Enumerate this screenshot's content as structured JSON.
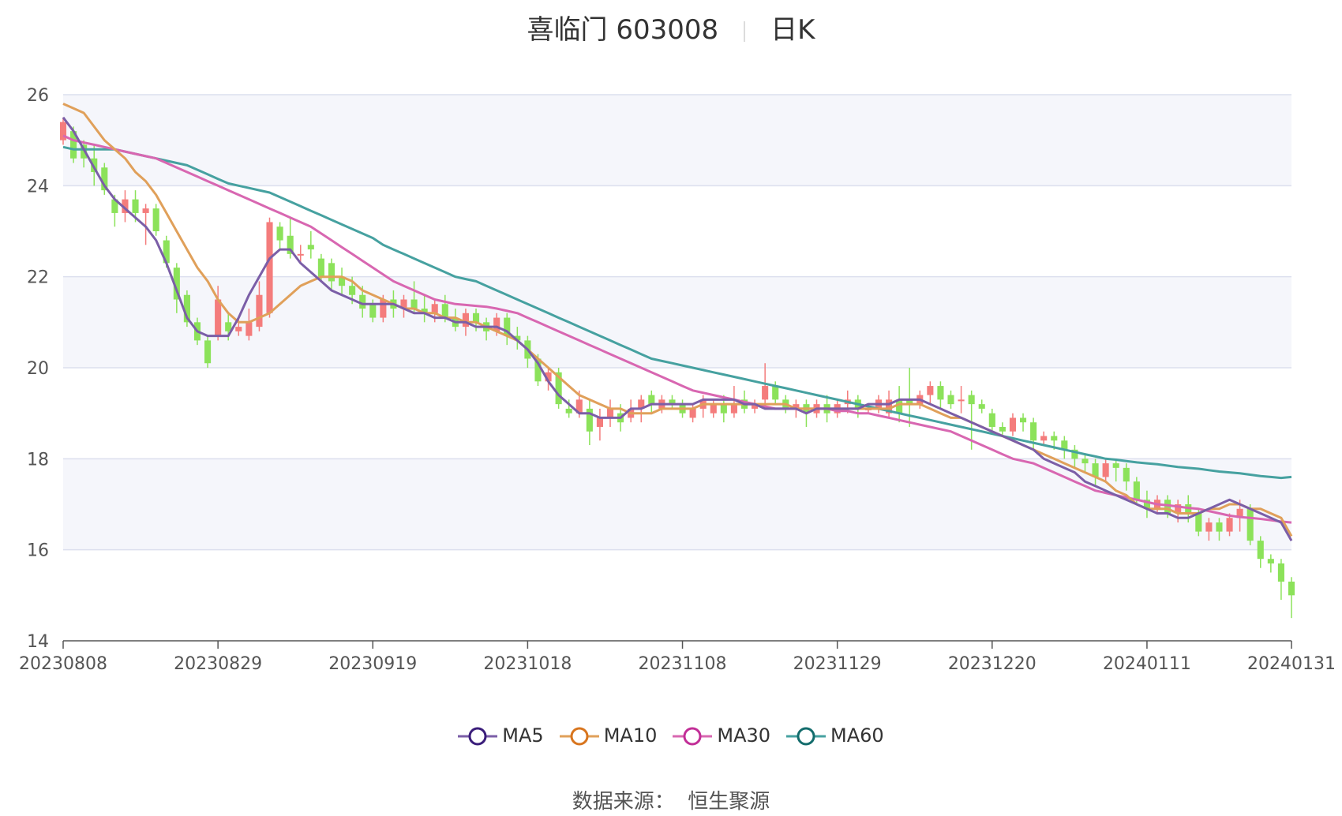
{
  "title": {
    "name": "喜临门 603008",
    "sub": "日K"
  },
  "source": {
    "label": "数据来源：",
    "value": "恒生聚源"
  },
  "chart_data": {
    "type": "candlestick",
    "ylim": [
      14,
      26
    ],
    "yticks": [
      14,
      16,
      18,
      20,
      22,
      24,
      26
    ],
    "xticks": [
      "20230808",
      "20230829",
      "20230919",
      "20231018",
      "20231108",
      "20231129",
      "20231220",
      "20240111",
      "20240131"
    ],
    "xtick_index": [
      0,
      15,
      30,
      45,
      60,
      75,
      90,
      105,
      119
    ],
    "grid": true,
    "colors": {
      "up": "#f47c7c",
      "down": "#8ce25a",
      "ma5": "#7b5ea7",
      "ma10": "#e0a05a",
      "ma30": "#d867b1",
      "ma60": "#46a1a0",
      "band": "#f5f6fb",
      "gridline": "#dcdfee"
    },
    "legend": [
      {
        "name": "MA5",
        "color": "#7b5ea7",
        "ring": "#3a1d7a"
      },
      {
        "name": "MA10",
        "color": "#e0a05a",
        "ring": "#d8751e"
      },
      {
        "name": "MA30",
        "color": "#d867b1",
        "ring": "#c22e97"
      },
      {
        "name": "MA60",
        "color": "#46a1a0",
        "ring": "#136c6c"
      }
    ],
    "candles": [
      [
        25.0,
        25.4,
        25.5,
        24.9
      ],
      [
        25.2,
        24.6,
        25.3,
        24.5
      ],
      [
        24.9,
        24.6,
        25.0,
        24.4
      ],
      [
        24.6,
        24.3,
        24.9,
        24.0
      ],
      [
        24.4,
        23.9,
        24.5,
        23.8
      ],
      [
        23.7,
        23.4,
        23.8,
        23.1
      ],
      [
        23.4,
        23.7,
        23.9,
        23.2
      ],
      [
        23.7,
        23.4,
        23.9,
        23.2
      ],
      [
        23.4,
        23.5,
        23.6,
        22.7
      ],
      [
        23.5,
        23.0,
        23.6,
        22.9
      ],
      [
        22.8,
        22.3,
        22.9,
        22.2
      ],
      [
        22.2,
        21.5,
        22.3,
        21.2
      ],
      [
        21.6,
        21.0,
        21.7,
        20.9
      ],
      [
        21.0,
        20.6,
        21.1,
        20.5
      ],
      [
        20.6,
        20.1,
        20.7,
        20.0
      ],
      [
        20.7,
        21.5,
        21.8,
        20.6
      ],
      [
        21.0,
        20.8,
        21.2,
        20.6
      ],
      [
        20.8,
        20.9,
        21.1,
        20.7
      ],
      [
        20.7,
        21.0,
        21.3,
        20.6
      ],
      [
        20.9,
        21.6,
        21.9,
        20.8
      ],
      [
        21.2,
        23.2,
        23.3,
        21.1
      ],
      [
        23.1,
        22.8,
        23.2,
        22.6
      ],
      [
        22.9,
        22.5,
        23.3,
        22.4
      ],
      [
        22.5,
        22.5,
        22.7,
        22.3
      ],
      [
        22.7,
        22.6,
        23.0,
        22.4
      ],
      [
        22.4,
        22.0,
        22.5,
        21.9
      ],
      [
        22.3,
        21.9,
        22.4,
        21.7
      ],
      [
        22.0,
        21.8,
        22.2,
        21.6
      ],
      [
        21.8,
        21.6,
        22.0,
        21.4
      ],
      [
        21.6,
        21.3,
        21.8,
        21.1
      ],
      [
        21.4,
        21.1,
        21.5,
        21.0
      ],
      [
        21.1,
        21.5,
        21.6,
        21.0
      ],
      [
        21.5,
        21.3,
        21.7,
        21.1
      ],
      [
        21.3,
        21.5,
        21.6,
        21.1
      ],
      [
        21.5,
        21.3,
        21.9,
        21.2
      ],
      [
        21.3,
        21.2,
        21.6,
        21.0
      ],
      [
        21.2,
        21.4,
        21.5,
        21.0
      ],
      [
        21.4,
        21.1,
        21.6,
        21.0
      ],
      [
        21.1,
        20.9,
        21.3,
        20.8
      ],
      [
        20.9,
        21.2,
        21.3,
        20.7
      ],
      [
        21.2,
        21.0,
        21.3,
        20.8
      ],
      [
        21.0,
        20.8,
        21.1,
        20.6
      ],
      [
        20.8,
        21.1,
        21.2,
        20.7
      ],
      [
        21.1,
        20.7,
        21.2,
        20.5
      ],
      [
        20.7,
        20.6,
        20.9,
        20.4
      ],
      [
        20.6,
        20.2,
        20.7,
        20.0
      ],
      [
        20.2,
        19.7,
        20.3,
        19.6
      ],
      [
        19.7,
        19.9,
        20.0,
        19.5
      ],
      [
        19.9,
        19.2,
        20.0,
        19.1
      ],
      [
        19.1,
        19.0,
        19.3,
        18.9
      ],
      [
        19.0,
        19.3,
        19.5,
        18.9
      ],
      [
        19.1,
        18.6,
        19.3,
        18.3
      ],
      [
        18.7,
        18.9,
        19.1,
        18.4
      ],
      [
        18.9,
        19.1,
        19.3,
        18.7
      ],
      [
        19.0,
        18.8,
        19.2,
        18.6
      ],
      [
        18.9,
        19.1,
        19.3,
        18.8
      ],
      [
        19.1,
        19.3,
        19.4,
        18.8
      ],
      [
        19.4,
        19.2,
        19.5,
        19.0
      ],
      [
        19.1,
        19.3,
        19.4,
        19.0
      ],
      [
        19.3,
        19.2,
        19.4,
        19.1
      ],
      [
        19.2,
        19.0,
        19.3,
        18.9
      ],
      [
        18.9,
        19.1,
        19.2,
        18.8
      ],
      [
        19.1,
        19.3,
        19.4,
        18.9
      ],
      [
        19.0,
        19.2,
        19.3,
        18.9
      ],
      [
        19.2,
        19.0,
        19.4,
        18.8
      ],
      [
        19.0,
        19.2,
        19.6,
        18.9
      ],
      [
        19.3,
        19.1,
        19.5,
        19.0
      ],
      [
        19.1,
        19.2,
        19.3,
        19.0
      ],
      [
        19.3,
        19.6,
        20.1,
        19.1
      ],
      [
        19.6,
        19.3,
        19.7,
        19.2
      ],
      [
        19.3,
        19.1,
        19.4,
        19.0
      ],
      [
        19.1,
        19.2,
        19.3,
        18.9
      ],
      [
        19.2,
        19.0,
        19.3,
        18.7
      ],
      [
        19.0,
        19.2,
        19.3,
        18.9
      ],
      [
        19.2,
        19.0,
        19.4,
        18.8
      ],
      [
        19.0,
        19.2,
        19.3,
        18.9
      ],
      [
        19.2,
        19.3,
        19.5,
        19.0
      ],
      [
        19.3,
        19.1,
        19.4,
        18.9
      ],
      [
        19.1,
        19.1,
        19.2,
        19.0
      ],
      [
        19.1,
        19.3,
        19.4,
        19.0
      ],
      [
        19.0,
        19.3,
        19.5,
        18.9
      ],
      [
        19.3,
        19.0,
        19.6,
        18.8
      ],
      [
        19.3,
        19.2,
        20.0,
        18.7
      ],
      [
        19.2,
        19.4,
        19.5,
        19.1
      ],
      [
        19.4,
        19.6,
        19.7,
        19.2
      ],
      [
        19.6,
        19.3,
        19.7,
        19.1
      ],
      [
        19.4,
        19.2,
        19.5,
        19.1
      ],
      [
        19.3,
        19.3,
        19.6,
        19.0
      ],
      [
        19.4,
        19.2,
        19.5,
        18.2
      ],
      [
        19.2,
        19.1,
        19.3,
        19.0
      ],
      [
        19.0,
        18.7,
        19.1,
        18.6
      ],
      [
        18.7,
        18.6,
        18.8,
        18.5
      ],
      [
        18.6,
        18.9,
        19.0,
        18.5
      ],
      [
        18.9,
        18.8,
        19.0,
        18.6
      ],
      [
        18.8,
        18.4,
        18.9,
        18.2
      ],
      [
        18.4,
        18.5,
        18.6,
        18.3
      ],
      [
        18.5,
        18.4,
        18.6,
        18.2
      ],
      [
        18.4,
        18.2,
        18.5,
        18.0
      ],
      [
        18.2,
        18.0,
        18.3,
        17.8
      ],
      [
        18.0,
        17.9,
        18.1,
        17.7
      ],
      [
        17.9,
        17.6,
        18.0,
        17.4
      ],
      [
        17.6,
        17.9,
        18.0,
        17.5
      ],
      [
        17.9,
        17.8,
        18.0,
        17.5
      ],
      [
        17.8,
        17.5,
        17.9,
        17.3
      ],
      [
        17.5,
        17.1,
        17.6,
        17.0
      ],
      [
        17.1,
        16.9,
        17.3,
        16.7
      ],
      [
        16.9,
        17.1,
        17.2,
        16.8
      ],
      [
        17.1,
        16.8,
        17.2,
        16.7
      ],
      [
        16.8,
        17.0,
        17.1,
        16.6
      ],
      [
        17.0,
        16.8,
        17.2,
        16.6
      ],
      [
        16.8,
        16.4,
        16.9,
        16.3
      ],
      [
        16.4,
        16.6,
        16.7,
        16.2
      ],
      [
        16.6,
        16.4,
        16.7,
        16.2
      ],
      [
        16.4,
        16.7,
        16.8,
        16.3
      ],
      [
        16.7,
        16.9,
        17.1,
        16.4
      ],
      [
        16.9,
        16.2,
        17.0,
        16.1
      ],
      [
        16.2,
        15.8,
        16.3,
        15.6
      ],
      [
        15.8,
        15.7,
        15.9,
        15.5
      ],
      [
        15.7,
        15.3,
        15.8,
        14.9
      ],
      [
        15.3,
        15.0,
        15.4,
        14.5
      ]
    ],
    "ma": {
      "MA5": [
        25.5,
        25.2,
        24.8,
        24.4,
        24.0,
        23.7,
        23.5,
        23.3,
        23.1,
        22.8,
        22.3,
        21.7,
        21.1,
        20.8,
        20.7,
        20.7,
        20.7,
        21.1,
        21.6,
        22.0,
        22.4,
        22.6,
        22.6,
        22.3,
        22.1,
        21.9,
        21.7,
        21.6,
        21.5,
        21.4,
        21.4,
        21.4,
        21.4,
        21.3,
        21.2,
        21.2,
        21.1,
        21.1,
        21.0,
        21.0,
        20.9,
        20.9,
        20.9,
        20.8,
        20.6,
        20.4,
        20.1,
        19.7,
        19.4,
        19.2,
        19.0,
        19.0,
        18.9,
        18.9,
        18.9,
        19.1,
        19.1,
        19.2,
        19.2,
        19.2,
        19.2,
        19.2,
        19.3,
        19.3,
        19.3,
        19.3,
        19.2,
        19.2,
        19.1,
        19.1,
        19.1,
        19.1,
        19.0,
        19.1,
        19.1,
        19.1,
        19.1,
        19.1,
        19.2,
        19.2,
        19.2,
        19.3,
        19.3,
        19.3,
        19.2,
        19.1,
        19.0,
        18.9,
        18.8,
        18.7,
        18.6,
        18.5,
        18.4,
        18.3,
        18.2,
        18.0,
        17.9,
        17.8,
        17.7,
        17.5,
        17.4,
        17.3,
        17.2,
        17.1,
        17.0,
        16.9,
        16.8,
        16.8,
        16.7,
        16.7,
        16.8,
        16.9,
        17.0,
        17.1,
        17.0,
        16.9,
        16.8,
        16.7,
        16.6,
        16.2
      ],
      "MA10": [
        25.8,
        25.7,
        25.6,
        25.3,
        25.0,
        24.8,
        24.6,
        24.3,
        24.1,
        23.8,
        23.4,
        23.0,
        22.6,
        22.2,
        21.9,
        21.5,
        21.2,
        21.0,
        21.0,
        21.1,
        21.2,
        21.4,
        21.6,
        21.8,
        21.9,
        22.0,
        22.0,
        22.0,
        21.9,
        21.7,
        21.6,
        21.5,
        21.4,
        21.3,
        21.3,
        21.2,
        21.2,
        21.1,
        21.1,
        21.0,
        21.0,
        20.9,
        20.8,
        20.7,
        20.6,
        20.4,
        20.2,
        20.0,
        19.8,
        19.6,
        19.4,
        19.3,
        19.2,
        19.1,
        19.1,
        19.0,
        19.0,
        19.0,
        19.1,
        19.1,
        19.1,
        19.1,
        19.2,
        19.2,
        19.2,
        19.2,
        19.2,
        19.2,
        19.2,
        19.2,
        19.2,
        19.1,
        19.1,
        19.1,
        19.1,
        19.1,
        19.1,
        19.1,
        19.1,
        19.1,
        19.1,
        19.2,
        19.2,
        19.2,
        19.1,
        19.0,
        18.9,
        18.9,
        18.8,
        18.7,
        18.6,
        18.5,
        18.4,
        18.3,
        18.2,
        18.1,
        18.0,
        17.9,
        17.8,
        17.7,
        17.6,
        17.5,
        17.3,
        17.2,
        17.0,
        16.9,
        16.9,
        16.9,
        16.8,
        16.8,
        16.8,
        16.9,
        16.9,
        17.0,
        17.0,
        16.9,
        16.9,
        16.8,
        16.7,
        16.3
      ],
      "MA30": [
        25.1,
        25.0,
        24.95,
        24.9,
        24.85,
        24.8,
        24.75,
        24.7,
        24.65,
        24.6,
        24.5,
        24.4,
        24.3,
        24.2,
        24.1,
        24.0,
        23.9,
        23.8,
        23.7,
        23.6,
        23.5,
        23.4,
        23.3,
        23.2,
        23.1,
        22.95,
        22.8,
        22.65,
        22.5,
        22.35,
        22.2,
        22.05,
        21.9,
        21.8,
        21.7,
        21.6,
        21.5,
        21.45,
        21.4,
        21.38,
        21.36,
        21.34,
        21.3,
        21.25,
        21.2,
        21.1,
        21.0,
        20.9,
        20.8,
        20.7,
        20.6,
        20.5,
        20.4,
        20.3,
        20.2,
        20.1,
        20.0,
        19.9,
        19.8,
        19.7,
        19.6,
        19.5,
        19.45,
        19.4,
        19.35,
        19.3,
        19.25,
        19.2,
        19.15,
        19.1,
        19.1,
        19.1,
        19.1,
        19.1,
        19.1,
        19.05,
        19.05,
        19.0,
        19.0,
        18.95,
        18.9,
        18.85,
        18.8,
        18.75,
        18.7,
        18.65,
        18.6,
        18.5,
        18.4,
        18.3,
        18.2,
        18.1,
        18.0,
        17.95,
        17.9,
        17.8,
        17.7,
        17.6,
        17.5,
        17.4,
        17.3,
        17.25,
        17.2,
        17.15,
        17.1,
        17.05,
        17.0,
        16.98,
        16.95,
        16.92,
        16.9,
        16.85,
        16.8,
        16.75,
        16.72,
        16.7,
        16.68,
        16.65,
        16.62,
        16.6
      ],
      "MA60": [
        24.85,
        24.8,
        24.8,
        24.8,
        24.8,
        24.8,
        24.75,
        24.7,
        24.65,
        24.6,
        24.55,
        24.5,
        24.45,
        24.35,
        24.25,
        24.15,
        24.05,
        24.0,
        23.95,
        23.9,
        23.85,
        23.75,
        23.65,
        23.55,
        23.45,
        23.35,
        23.25,
        23.15,
        23.05,
        22.95,
        22.85,
        22.7,
        22.6,
        22.5,
        22.4,
        22.3,
        22.2,
        22.1,
        22.0,
        21.95,
        21.9,
        21.8,
        21.7,
        21.6,
        21.5,
        21.4,
        21.3,
        21.2,
        21.1,
        21.0,
        20.9,
        20.8,
        20.7,
        20.6,
        20.5,
        20.4,
        20.3,
        20.2,
        20.15,
        20.1,
        20.05,
        20.0,
        19.95,
        19.9,
        19.85,
        19.8,
        19.75,
        19.7,
        19.65,
        19.6,
        19.55,
        19.5,
        19.45,
        19.4,
        19.35,
        19.3,
        19.25,
        19.2,
        19.15,
        19.1,
        19.05,
        19.0,
        18.95,
        18.9,
        18.85,
        18.8,
        18.75,
        18.7,
        18.65,
        18.6,
        18.55,
        18.5,
        18.45,
        18.4,
        18.35,
        18.3,
        18.25,
        18.2,
        18.15,
        18.1,
        18.05,
        18.0,
        17.98,
        17.95,
        17.92,
        17.9,
        17.88,
        17.85,
        17.82,
        17.8,
        17.78,
        17.75,
        17.72,
        17.7,
        17.68,
        17.65,
        17.62,
        17.6,
        17.58,
        17.6
      ]
    }
  }
}
